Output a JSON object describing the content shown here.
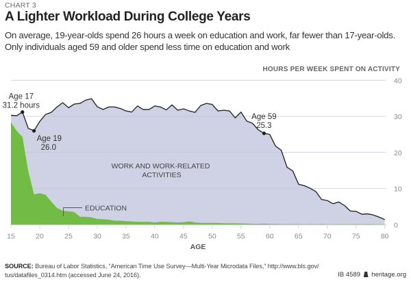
{
  "header": {
    "kicker": "CHART 3",
    "title": "A Lighter Workload During College Years",
    "subtitle": "On average, 19-year-olds spend 26 hours a week on education and work, far fewer than 17-year-olds. Only individuals aged 59 and older spend less time on education and work"
  },
  "footer": {
    "source_label": "SOURCE:",
    "source_text": " Bureau of Labor Statistics, “American Time Use Survey—Multi-Year Microdata Files,” http://www.bls.gov/ tus/datafiles_0314.htm (accessed June 24, 2016).",
    "id": "IB 4589",
    "site": "heritage.org",
    "logo_icon": "liberty-bell-icon"
  },
  "colors": {
    "total_fill": "#cfd2e4",
    "total_line": "#2a2a2a",
    "education_fill": "#72bb44",
    "grid_on_white": "#ebebeb",
    "grid_on_fill": "#bfc2d6"
  },
  "chart_data": {
    "type": "area",
    "title": "A Lighter Workload During College Years",
    "xlabel": "AGE",
    "ylabel": "HOURS PER WEEK SPENT ON ACTIVITY",
    "xlim": [
      15,
      80
    ],
    "ylim": [
      0,
      40
    ],
    "xticks": [
      15,
      20,
      25,
      30,
      35,
      40,
      45,
      50,
      55,
      60,
      65,
      70,
      75,
      80
    ],
    "yticks": [
      0,
      10,
      20,
      30,
      40
    ],
    "grid": true,
    "yaxis_position": "right",
    "x": [
      15,
      16,
      17,
      18,
      19,
      20,
      21,
      22,
      23,
      24,
      25,
      26,
      27,
      28,
      29,
      30,
      31,
      32,
      33,
      34,
      35,
      36,
      37,
      38,
      39,
      40,
      41,
      42,
      43,
      44,
      45,
      46,
      47,
      48,
      49,
      50,
      51,
      52,
      53,
      54,
      55,
      56,
      57,
      58,
      59,
      60,
      61,
      62,
      63,
      64,
      65,
      66,
      67,
      68,
      69,
      70,
      71,
      72,
      73,
      74,
      75,
      76,
      77,
      78,
      79,
      80
    ],
    "series": [
      {
        "name": "Education and work total (hours)",
        "values": [
          30.3,
          30.2,
          31.2,
          26.7,
          26.0,
          28.6,
          30.5,
          31.1,
          32.6,
          33.8,
          32.4,
          33.4,
          33.6,
          34.5,
          34.9,
          32.7,
          31.9,
          32.6,
          32.6,
          32.2,
          31.5,
          31.2,
          32.9,
          31.9,
          31.9,
          32.9,
          32.6,
          31.8,
          33.2,
          31.7,
          32.1,
          31.5,
          31.1,
          33.0,
          33.6,
          33.3,
          31.5,
          31.7,
          31.5,
          29.6,
          31.2,
          28.7,
          28.1,
          26.3,
          25.3,
          25.0,
          21.8,
          20.6,
          15.9,
          14.9,
          11.2,
          10.8,
          10.1,
          9.2,
          7.0,
          6.7,
          5.8,
          6.3,
          5.3,
          3.8,
          3.7,
          2.9,
          3.0,
          2.7,
          2.1,
          1.4
        ]
      },
      {
        "name": "EDUCATION",
        "values": [
          28.4,
          26.0,
          24.3,
          14.9,
          8.4,
          8.7,
          8.3,
          6.4,
          4.6,
          3.9,
          3.7,
          3.5,
          2.2,
          2.2,
          2.0,
          1.6,
          1.5,
          1.4,
          1.1,
          1.1,
          0.95,
          0.9,
          0.8,
          0.75,
          0.8,
          0.6,
          0.8,
          0.8,
          0.7,
          0.6,
          0.7,
          0.9,
          0.6,
          0.5,
          0.5,
          0.5,
          0.45,
          0.4,
          0.4,
          0.4,
          0.35,
          0.3,
          0.25,
          0.25,
          0.3,
          0.2,
          0.2,
          0.15,
          0.15,
          0.15,
          0.15,
          0.1,
          0.15,
          0.1,
          0.15,
          0.1,
          0.1,
          0.15,
          0.1,
          0.1,
          0.15,
          0.1,
          0.15,
          0.1,
          0.1,
          0.1
        ]
      }
    ],
    "region_labels": {
      "work": "WORK AND WORK-RELATED ACTIVITIES",
      "work_lines": [
        "WORK AND WORK-RELATED",
        "ACTIVITIES"
      ],
      "education": "EDUCATION"
    },
    "annotations": [
      {
        "age": 17,
        "value": 31.2,
        "lines": [
          "Age 17",
          "31.2 hours"
        ]
      },
      {
        "age": 19,
        "value": 26.0,
        "lines": [
          "Age 19",
          "26.0"
        ]
      },
      {
        "age": 59,
        "value": 25.3,
        "lines": [
          "Age 59",
          "25.3"
        ]
      }
    ]
  }
}
